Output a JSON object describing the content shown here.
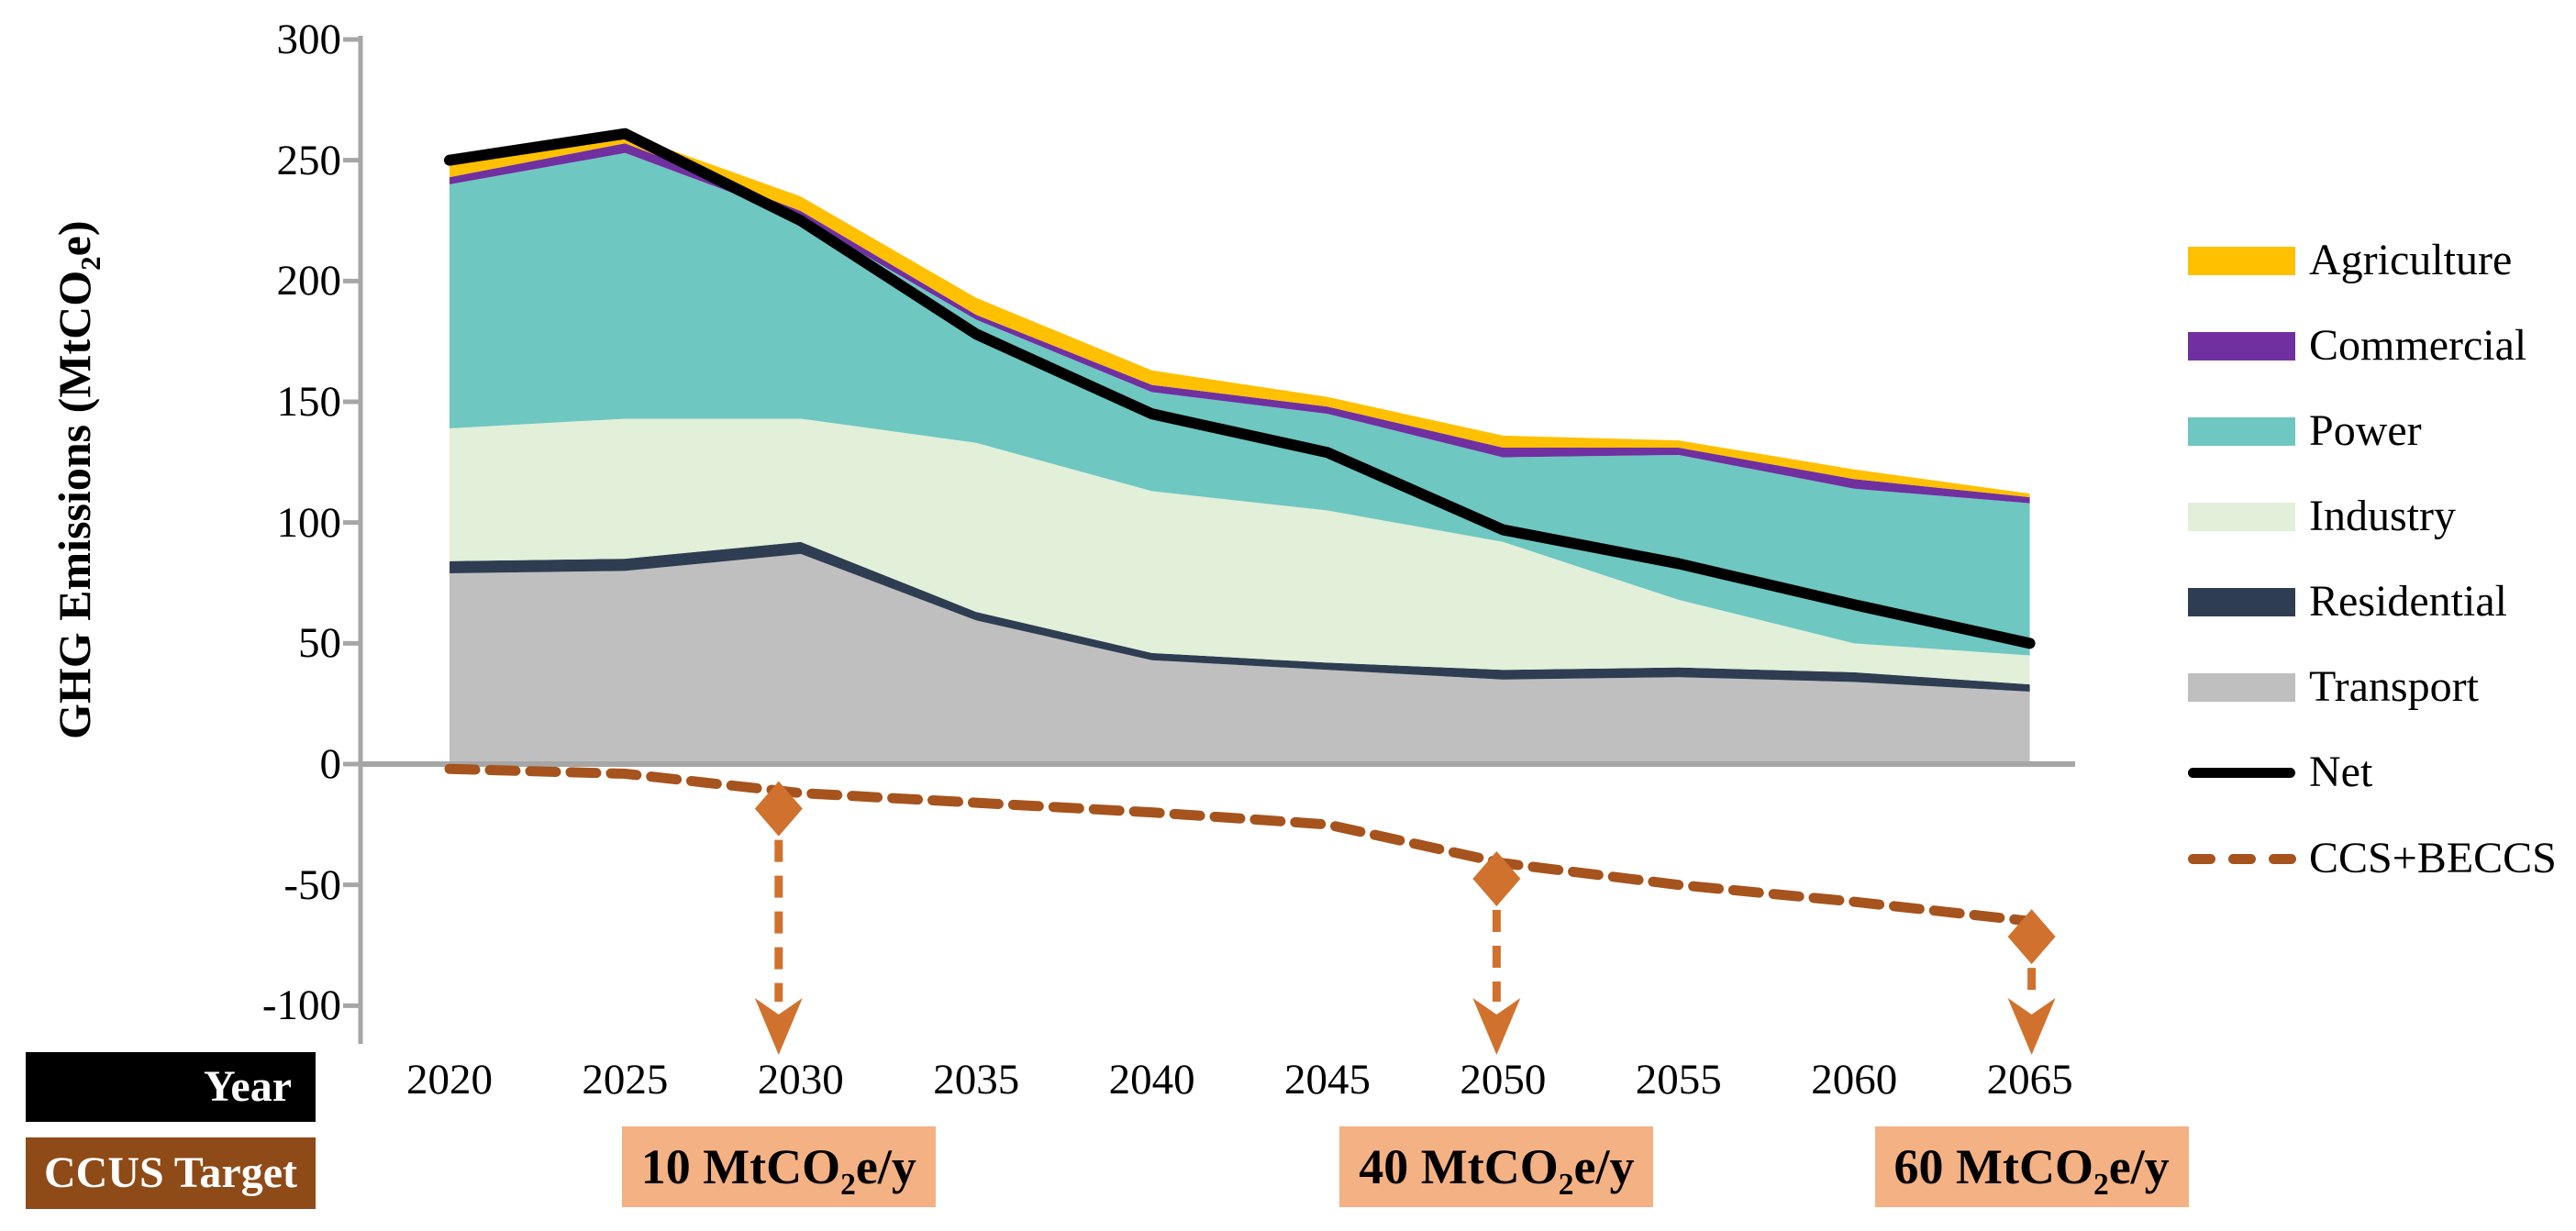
{
  "y_axis": {
    "title": "GHG Emissions (MtCO2e)",
    "tick_labels": [
      "300",
      "250",
      "200",
      "150",
      "100",
      "50",
      "0",
      "-50",
      "-100"
    ],
    "tick_values": [
      300,
      250,
      200,
      150,
      100,
      50,
      0,
      -50,
      -100
    ],
    "axis_color": "#A6A6A6"
  },
  "x_axis": {
    "row_label": "Year",
    "row_label_bg": "#000000",
    "tick_labels": [
      "2020",
      "2025",
      "2030",
      "2035",
      "2040",
      "2045",
      "2050",
      "2055",
      "2060",
      "2065"
    ]
  },
  "chart_data": {
    "type": "area",
    "title": "",
    "xlabel": "Year",
    "ylabel": "GHG Emissions (MtCO2e)",
    "x": [
      2020,
      2025,
      2030,
      2035,
      2040,
      2045,
      2050,
      2055,
      2060,
      2065
    ],
    "ylim": [
      -100,
      300
    ],
    "grid": false,
    "legend_position": "right",
    "stack_order": [
      "Transport",
      "Residential",
      "Industry",
      "Power",
      "Commercial",
      "Agriculture"
    ],
    "series": [
      {
        "name": "Agriculture",
        "type": "area",
        "color": "#FFC000",
        "values": [
          7,
          4,
          6,
          7,
          6,
          4,
          5,
          3,
          4,
          1.5
        ]
      },
      {
        "name": "Commercial",
        "type": "area",
        "color": "#7030A0",
        "values": [
          3,
          4,
          3,
          2,
          3,
          3,
          4,
          3,
          4,
          2.5
        ]
      },
      {
        "name": "Power",
        "type": "area",
        "color": "#6EC7C0",
        "values": [
          101,
          110,
          83,
          51,
          41,
          40,
          35,
          60,
          64,
          63
        ]
      },
      {
        "name": "Industry",
        "type": "area",
        "color": "#E2EFD9",
        "values": [
          55,
          58,
          51,
          70,
          67,
          63,
          53,
          28,
          12,
          12
        ]
      },
      {
        "name": "Residential",
        "type": "area",
        "color": "#2F3D52",
        "values": [
          5,
          5,
          5,
          3.5,
          3,
          3,
          4,
          4,
          4,
          3
        ]
      },
      {
        "name": "Transport",
        "type": "area",
        "color": "#BFBFBF",
        "values": [
          79,
          80,
          87,
          59.5,
          43,
          39,
          35,
          36,
          34,
          30
        ]
      },
      {
        "name": "Net",
        "type": "line",
        "color": "#000000",
        "values": [
          250,
          261,
          225,
          178,
          145,
          129,
          97,
          83,
          66,
          50
        ]
      },
      {
        "name": "CCS+BECCS",
        "type": "dashed-line",
        "color": "#A6531D",
        "values": [
          -2,
          -4,
          -12,
          -16,
          -20,
          -25,
          -41,
          -50,
          -57,
          -65
        ]
      }
    ],
    "stack_totals": [
      250,
      261,
      235,
      193,
      163,
      152,
      136,
      134,
      122,
      112
    ]
  },
  "annotations": {
    "row_label": "CCUS Target",
    "row_label_bg": "#8E4A17",
    "arrow_color": "#D0722D",
    "box_bg": "#F4B183",
    "targets": [
      {
        "year": 2030,
        "label": "10 MtCO2e/y"
      },
      {
        "year": 2050,
        "label": "40 MtCO2e/y"
      },
      {
        "year": 2065,
        "label": "60 MtCO2e/y"
      }
    ]
  }
}
